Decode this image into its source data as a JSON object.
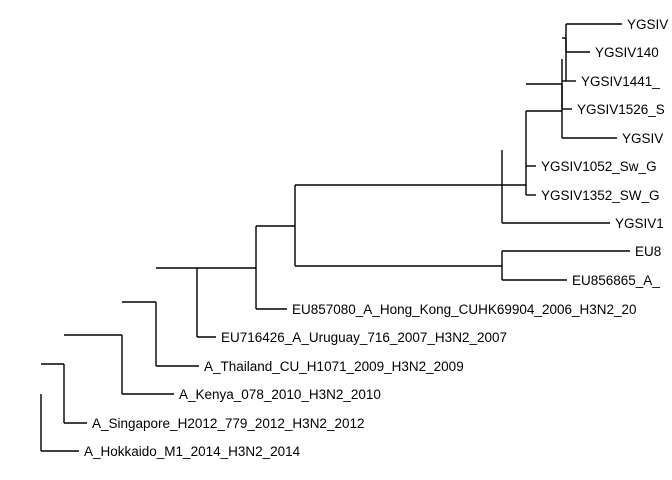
{
  "tree": {
    "line_color": "#000000",
    "background": "#ffffff",
    "tip_labels": [
      "YGSIV",
      "YGSIV140",
      "YGSIV1441_",
      "YGSIV1526_S",
      "YGSIV",
      "YGSIV1052_Sw_G",
      "YGSIV1352_SW_G",
      "YGSIV1",
      "EU8",
      "EU856865_A_",
      "EU857080_A_Hong_Kong_CUHK69904_2006_H3N2_20",
      "EU716426_A_Uruguay_716_2007_H3N2_2007",
      "A_Thailand_CU_H1071_2009_H3N2_2009",
      "A_Kenya_078_2010_H3N2_2010",
      "A_Singapore_H2012_779_2012_H3N2_2012",
      "A_Hokkaido_M1_2014_H3N2_2014"
    ]
  }
}
